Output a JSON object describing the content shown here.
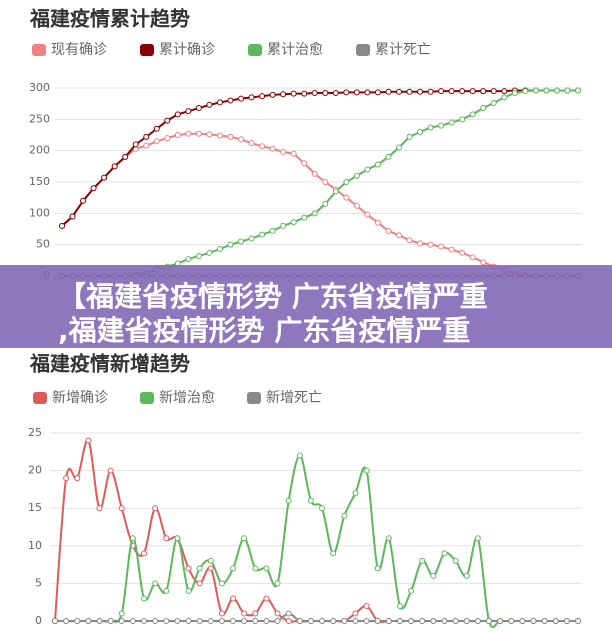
{
  "chart_data": [
    {
      "type": "line",
      "title": "福建疫情累计趋势",
      "smooth": false,
      "markers": true,
      "grid": true,
      "ylim": [
        0,
        300
      ],
      "yticks": [
        0,
        50,
        100,
        150,
        200,
        250,
        300
      ],
      "series": [
        {
          "name": "现有确诊",
          "color": "#f08080",
          "values": [
            80,
            95,
            120,
            140,
            157,
            175,
            190,
            203,
            208,
            215,
            220,
            225,
            227,
            227,
            226,
            224,
            222,
            218,
            212,
            207,
            203,
            198,
            195,
            180,
            163,
            150,
            138,
            125,
            112,
            98,
            85,
            72,
            65,
            57,
            52,
            50,
            47,
            42,
            37,
            30,
            22,
            15,
            10,
            4,
            1,
            0,
            0,
            0,
            0,
            0
          ]
        },
        {
          "name": "累计确诊",
          "color": "#8b0000",
          "values": [
            80,
            95,
            120,
            140,
            157,
            175,
            190,
            210,
            222,
            235,
            248,
            258,
            263,
            268,
            273,
            277,
            280,
            283,
            285,
            287,
            289,
            290,
            291,
            291,
            292,
            292,
            292,
            293,
            293,
            293,
            293,
            294,
            294,
            294,
            294,
            294,
            295,
            295,
            295,
            295,
            295,
            295,
            295,
            296,
            296,
            296,
            296,
            296,
            296,
            296
          ]
        },
        {
          "name": "累计治愈",
          "color": "#5cb85c",
          "values": [
            0,
            0,
            0,
            0,
            0,
            0,
            0,
            2,
            5,
            10,
            15,
            20,
            27,
            32,
            37,
            43,
            50,
            55,
            60,
            66,
            72,
            80,
            86,
            93,
            100,
            115,
            135,
            150,
            160,
            170,
            178,
            190,
            205,
            222,
            230,
            237,
            240,
            245,
            250,
            258,
            268,
            276,
            285,
            292,
            295,
            296,
            296,
            296,
            296,
            296
          ]
        },
        {
          "name": "累计死亡",
          "color": "#888888",
          "values": [
            0,
            0,
            0,
            0,
            0,
            0,
            0,
            0,
            0,
            0,
            0,
            0,
            0,
            0,
            0,
            0,
            0,
            0,
            0,
            0,
            0,
            0,
            0,
            0,
            0,
            0,
            0,
            0,
            0,
            0,
            0,
            0,
            0,
            0,
            0,
            0,
            0,
            0,
            0,
            0,
            0,
            0,
            0,
            0,
            0,
            0,
            0,
            0,
            0,
            0
          ]
        }
      ]
    },
    {
      "type": "line",
      "title": "福建疫情新增趋势",
      "smooth": true,
      "markers": true,
      "grid": true,
      "ylim": [
        0,
        25
      ],
      "yticks": [
        0,
        5,
        10,
        15,
        20,
        25
      ],
      "series": [
        {
          "name": "新增确诊",
          "color": "#e05a5a",
          "values": [
            0,
            19,
            19,
            24,
            15,
            20,
            15,
            10,
            9,
            15,
            11,
            11,
            7,
            5,
            7,
            1,
            3,
            1,
            1,
            3,
            1,
            0,
            0,
            0,
            0,
            0,
            0,
            1,
            2,
            0,
            0,
            0,
            0,
            0,
            0,
            0,
            0,
            0,
            0,
            0,
            0,
            0,
            0,
            0,
            0,
            0,
            0,
            0
          ]
        },
        {
          "name": "新增治愈",
          "color": "#5cb85c",
          "values": [
            0,
            0,
            0,
            0,
            0,
            0,
            1,
            11,
            3,
            5,
            4,
            11,
            4,
            7,
            8,
            5,
            7,
            11,
            7,
            7,
            5,
            16,
            22,
            16,
            15,
            9,
            14,
            17,
            20,
            7,
            11,
            2,
            4,
            8,
            6,
            9,
            8,
            6,
            11,
            0,
            0,
            0,
            0,
            0,
            0,
            0,
            0,
            0
          ]
        },
        {
          "name": "新增死亡",
          "color": "#888888",
          "values": [
            0,
            0,
            0,
            0,
            0,
            0,
            0,
            0,
            0,
            0,
            0,
            0,
            0,
            0,
            0,
            0,
            0,
            0,
            0,
            0,
            0,
            1,
            0,
            0,
            0,
            0,
            0,
            0,
            0,
            0,
            0,
            0,
            0,
            0,
            0,
            0,
            0,
            0,
            0,
            0,
            0,
            0,
            0,
            0,
            0,
            0,
            0,
            0
          ]
        }
      ]
    }
  ],
  "banner": {
    "lines": [
      "【福建省疫情形势 广东省疫情严重",
      ",福建省疫情形势 广东省疫情严重"
    ]
  }
}
